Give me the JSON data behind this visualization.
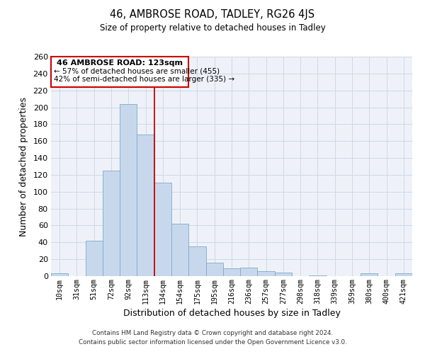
{
  "title": "46, AMBROSE ROAD, TADLEY, RG26 4JS",
  "subtitle": "Size of property relative to detached houses in Tadley",
  "xlabel": "Distribution of detached houses by size in Tadley",
  "ylabel": "Number of detached properties",
  "bar_labels": [
    "10sqm",
    "31sqm",
    "51sqm",
    "72sqm",
    "92sqm",
    "113sqm",
    "134sqm",
    "154sqm",
    "175sqm",
    "195sqm",
    "216sqm",
    "236sqm",
    "257sqm",
    "277sqm",
    "298sqm",
    "318sqm",
    "339sqm",
    "359sqm",
    "380sqm",
    "400sqm",
    "421sqm"
  ],
  "bar_heights": [
    3,
    0,
    42,
    125,
    204,
    168,
    111,
    62,
    35,
    16,
    9,
    10,
    6,
    4,
    0,
    1,
    0,
    0,
    3,
    0,
    3
  ],
  "bar_color": "#c8d8ec",
  "bar_edge_color": "#7aaac8",
  "ylim": [
    0,
    260
  ],
  "yticks": [
    0,
    20,
    40,
    60,
    80,
    100,
    120,
    140,
    160,
    180,
    200,
    220,
    240,
    260
  ],
  "property_line_label": "46 AMBROSE ROAD: 123sqm",
  "annotation_line1": "← 57% of detached houses are smaller (455)",
  "annotation_line2": "42% of semi-detached houses are larger (335) →",
  "box_color": "#cc0000",
  "footer_line1": "Contains HM Land Registry data © Crown copyright and database right 2024.",
  "footer_line2": "Contains public sector information licensed under the Open Government Licence v3.0.",
  "grid_color": "#cdd8e8",
  "background_color": "#eef2f8"
}
